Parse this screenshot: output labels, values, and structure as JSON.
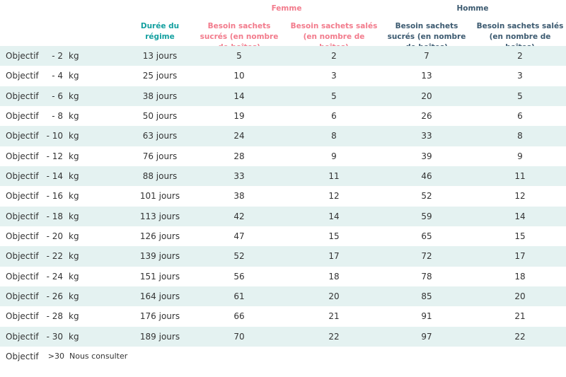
{
  "header": {
    "groups": [
      "Femme",
      "Homme"
    ],
    "columns": [
      "Durée du régime",
      "Besoin sachets sucrés (en nombre de boîtes)",
      "Besoin sachets salés (en nombre de boîtes)",
      "Besoin sachets sucrés (en nombre de boîtes)",
      "Besoin sachets salés (en nombre de boîtes)"
    ]
  },
  "table": {
    "rows": [
      [
        "Objectif",
        "- 2",
        "kg",
        "13 jours",
        5,
        2,
        7,
        2
      ],
      [
        "Objectif",
        "- 4",
        "kg",
        "25 jours",
        10,
        3,
        13,
        3
      ],
      [
        "Objectif",
        "- 6",
        "kg",
        "38 jours",
        14,
        5,
        20,
        5
      ],
      [
        "Objectif",
        "- 8",
        "kg",
        "50 jours",
        19,
        6,
        26,
        6
      ],
      [
        "Objectif",
        "- 10",
        "kg",
        "63 jours",
        24,
        8,
        33,
        8
      ],
      [
        "Objectif",
        "- 12",
        "kg",
        "76 jours",
        28,
        9,
        39,
        9
      ],
      [
        "Objectif",
        "- 14",
        "kg",
        "88 jours",
        33,
        11,
        46,
        11
      ],
      [
        "Objectif",
        "- 16",
        "kg",
        "101 jours",
        38,
        12,
        52,
        12
      ],
      [
        "Objectif",
        "- 18",
        "kg",
        "113 jours",
        42,
        14,
        59,
        14
      ],
      [
        "Objectif",
        "- 20",
        "kg",
        "126 jours",
        47,
        15,
        65,
        15
      ],
      [
        "Objectif",
        "- 22",
        "kg",
        "139 jours",
        52,
        17,
        72,
        17
      ],
      [
        "Objectif",
        "- 24",
        "kg",
        "151 jours",
        56,
        18,
        78,
        18
      ],
      [
        "Objectif",
        "- 26",
        "kg",
        "164 jours",
        61,
        20,
        85,
        20
      ],
      [
        "Objectif",
        "- 28",
        "kg",
        "176 jours",
        66,
        21,
        91,
        21
      ],
      [
        "Objectif",
        "- 30",
        "kg",
        "189 jours",
        70,
        22,
        97,
        22
      ]
    ],
    "footer": [
      "Objectif",
      ">30",
      "Nous consulter"
    ]
  }
}
